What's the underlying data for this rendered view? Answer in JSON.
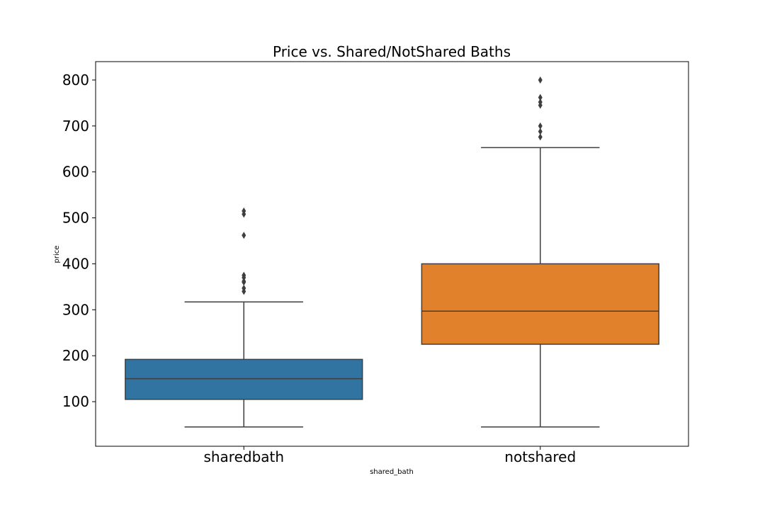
{
  "chart_data": {
    "type": "box",
    "title": "Price vs. Shared/NotShared Baths",
    "xlabel": "shared_bath",
    "ylabel": "price",
    "ylim": [
      3,
      840
    ],
    "yticks": [
      100,
      200,
      300,
      400,
      500,
      600,
      700,
      800
    ],
    "grid": false,
    "categories": [
      "sharedbath",
      "notshared"
    ],
    "series": [
      {
        "category": "sharedbath",
        "color": "#3274a1",
        "whisker_low": 45,
        "q1": 105,
        "median": 150,
        "q3": 192,
        "whisker_high": 317,
        "outliers": [
          340,
          347,
          360,
          362,
          370,
          375,
          462,
          508,
          515
        ]
      },
      {
        "category": "notshared",
        "color": "#e1812c",
        "whisker_low": 45,
        "q1": 225,
        "median": 297,
        "q3": 400,
        "whisker_high": 653,
        "outliers": [
          676,
          688,
          700,
          745,
          752,
          762,
          800
        ]
      }
    ]
  }
}
